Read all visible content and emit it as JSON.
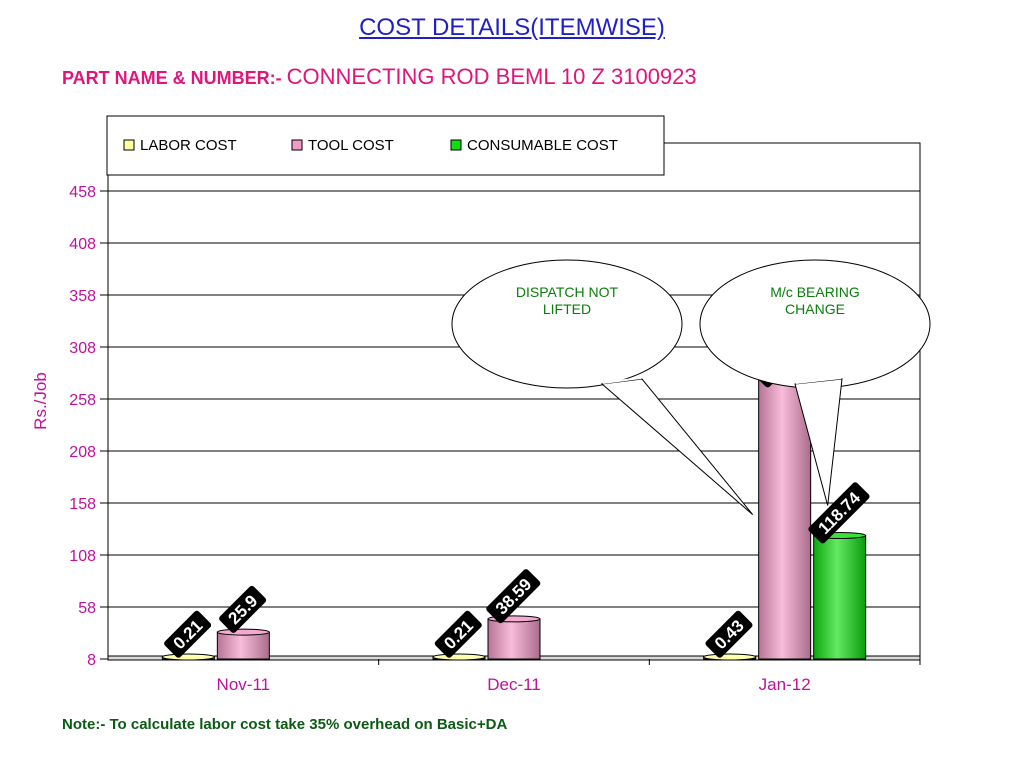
{
  "header": {
    "title": "COST DETAILS(ITEMWISE)",
    "part_label": "PART NAME & NUMBER:- ",
    "part_value": "CONNECTING ROD BEML 10 Z 3100923"
  },
  "note": "Note:- To calculate labor cost take 35% overhead on Basic+DA",
  "chart_data": {
    "type": "bar",
    "categories": [
      "Nov-11",
      "Dec-11",
      "Jan-12"
    ],
    "ylabel": "Rs./Job",
    "xlabel": "",
    "ylim": [
      8,
      458
    ],
    "yticks": [
      8,
      58,
      108,
      158,
      208,
      258,
      308,
      358,
      408,
      458
    ],
    "grid": true,
    "legend_position": "top-left",
    "series": [
      {
        "name": "LABOR COST",
        "values": [
          0.21,
          0.21,
          0.43
        ],
        "labels": [
          "0.21",
          "0.21",
          "0.43"
        ],
        "color": "#ffffa0"
      },
      {
        "name": "TOOL COST",
        "values": [
          25.9,
          38.59,
          268.69
        ],
        "labels": [
          "25.9",
          "38.59",
          "268.69"
        ],
        "color": "#f49ac8"
      },
      {
        "name": "CONSUMABLE COST",
        "values": [
          null,
          null,
          118.74
        ],
        "labels": [
          "",
          "",
          "118.74"
        ],
        "color": "#11dd11"
      }
    ],
    "annotations": [
      {
        "lines": [
          "DISPATCH NOT",
          "LIFTED"
        ],
        "category": "Jan-12",
        "target_series": "TOOL COST"
      },
      {
        "lines": [
          "M/c BEARING",
          "CHANGE"
        ],
        "category": "Jan-12",
        "target_series": "CONSUMABLE COST"
      }
    ],
    "colors": {
      "tick_text": "#c0119c",
      "axis_label": "#c0119c",
      "category_text": "#c0119c",
      "annotation_text": "#0b7d0b"
    }
  }
}
